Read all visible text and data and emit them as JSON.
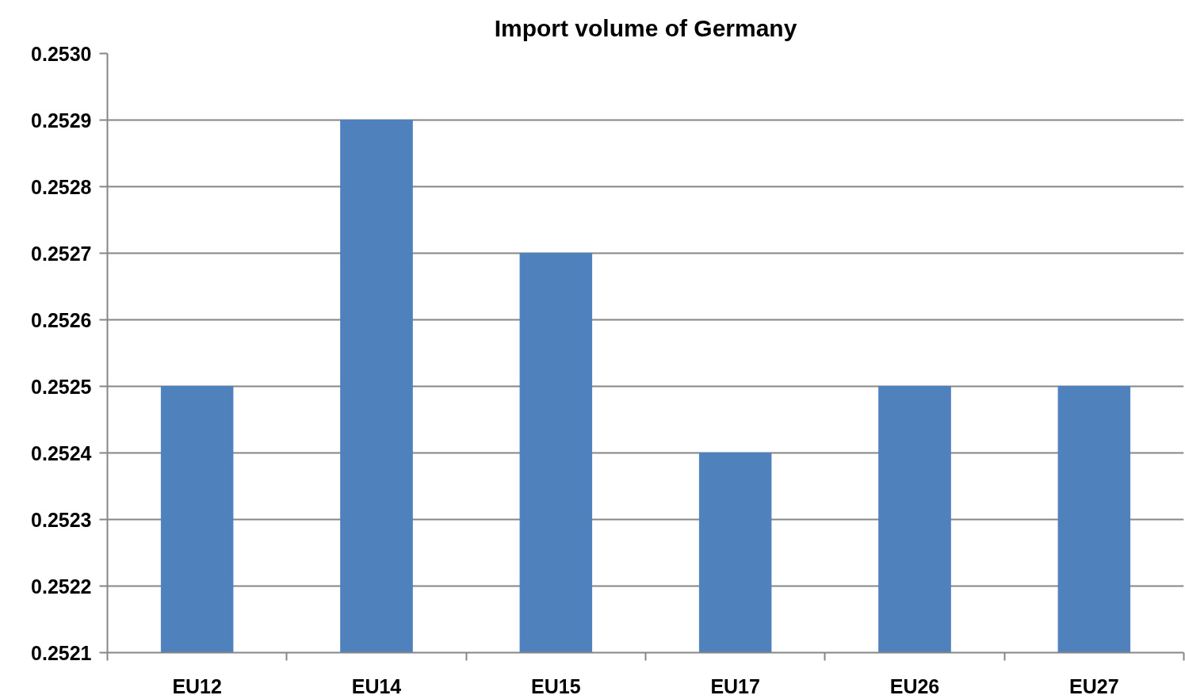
{
  "chart_data": {
    "type": "bar",
    "title": "Import volume of Germany",
    "categories": [
      "EU12",
      "EU14",
      "EU15",
      "EU17",
      "EU26",
      "EU27"
    ],
    "values": [
      0.2525,
      0.2529,
      0.2527,
      0.2524,
      0.2525,
      0.2525
    ],
    "color": "#4f81bd",
    "ylim": [
      0.2521,
      0.253
    ],
    "yticks": [
      0.2521,
      0.2522,
      0.2523,
      0.2524,
      0.2525,
      0.2526,
      0.2527,
      0.2528,
      0.2529,
      {
        "value": 0.253,
        "label": "0.2530"
      }
    ],
    "grid": "y"
  }
}
